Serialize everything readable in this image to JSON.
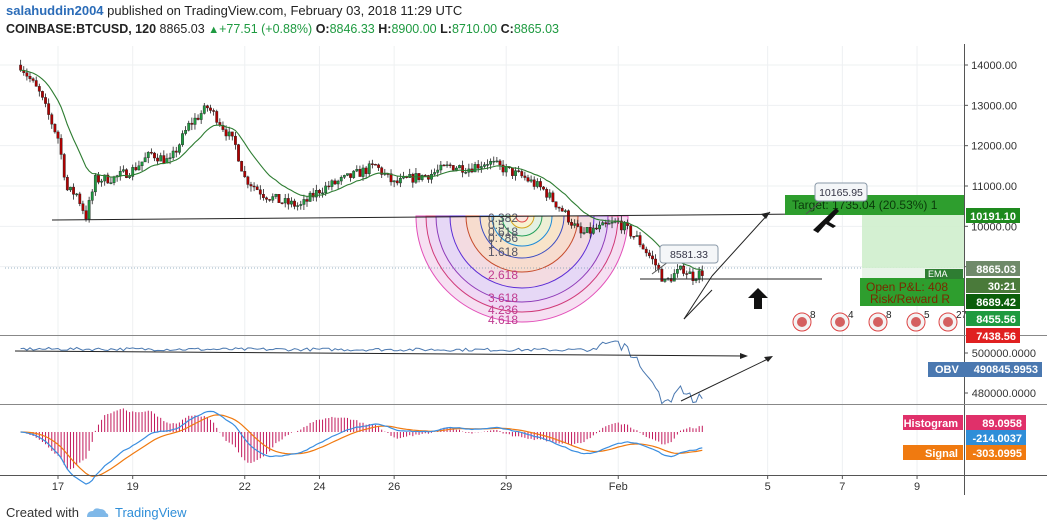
{
  "header": {
    "author": "salahuddin2004",
    "published": "published on TradingView.com, February 03, 2018 11:29 UTC",
    "symbol": "COINBASE:BTCUSD, 120",
    "last": "8865.03",
    "change": "+77.51 (+0.88%)",
    "ohlc": {
      "o_label": "O:",
      "o": "8846.33",
      "h_label": "H:",
      "h": "8900.00",
      "l_label": "L:",
      "l": "8710.00",
      "c_label": "C:",
      "c": "8865.03"
    }
  },
  "footer": {
    "created_with": "Created with",
    "brand": "TradingView"
  },
  "colors": {
    "up": "#1e9a40",
    "down": "#b00000",
    "accent": "#2b6cb8",
    "obv": "#4a78b0",
    "macd": "#3a8ee0",
    "signal": "#f07a10",
    "histogram": "#c2185b"
  },
  "chart_data": [
    {
      "type": "candlestick",
      "panel": "price",
      "ylim": [
        7380,
        14300
      ],
      "y_ticks": [
        "14000.00",
        "13000.00",
        "12000.00",
        "11000.00",
        "10000.00",
        "9000.00"
      ],
      "x_ticks": [
        "17",
        "19",
        "22",
        "24",
        "26",
        "29",
        "Feb",
        "5",
        "7",
        "9"
      ],
      "close_path": [
        {
          "d": "Jan 16 00:00",
          "c": 14000
        },
        {
          "d": "Jan 16 12:00",
          "c": 13300
        },
        {
          "d": "Jan 17 00:00",
          "c": 12200
        },
        {
          "d": "Jan 17 06:00",
          "c": 10900
        },
        {
          "d": "Jan 17 12:00",
          "c": 10800
        },
        {
          "d": "Jan 17 18:00",
          "c": 10250
        },
        {
          "d": "Jan 18 00:00",
          "c": 11150
        },
        {
          "d": "Jan 18 12:00",
          "c": 11200
        },
        {
          "d": "Jan 19 00:00",
          "c": 11400
        },
        {
          "d": "Jan 19 12:00",
          "c": 11800
        },
        {
          "d": "Jan 20 00:00",
          "c": 11600
        },
        {
          "d": "Jan 20 12:00",
          "c": 12500
        },
        {
          "d": "Jan 21 00:00",
          "c": 12950
        },
        {
          "d": "Jan 21 06:00",
          "c": 12700
        },
        {
          "d": "Jan 21 18:00",
          "c": 12000
        },
        {
          "d": "Jan 22 00:00",
          "c": 11200
        },
        {
          "d": "Jan 22 12:00",
          "c": 10800
        },
        {
          "d": "Jan 23 00:00",
          "c": 10600
        },
        {
          "d": "Jan 23 12:00",
          "c": 10500
        },
        {
          "d": "Jan 24 00:00",
          "c": 10900
        },
        {
          "d": "Jan 24 12:00",
          "c": 11100
        },
        {
          "d": "Jan 25 00:00",
          "c": 11300
        },
        {
          "d": "Jan 25 12:00",
          "c": 11500
        },
        {
          "d": "Jan 26 00:00",
          "c": 11050
        },
        {
          "d": "Jan 26 12:00",
          "c": 11200
        },
        {
          "d": "Jan 27 00:00",
          "c": 11300
        },
        {
          "d": "Jan 27 12:00",
          "c": 11500
        },
        {
          "d": "Jan 28 00:00",
          "c": 11450
        },
        {
          "d": "Jan 28 12:00",
          "c": 11600
        },
        {
          "d": "Jan 29 00:00",
          "c": 11400
        },
        {
          "d": "Jan 29 12:00",
          "c": 11200
        },
        {
          "d": "Jan 30 00:00",
          "c": 10900
        },
        {
          "d": "Jan 30 12:00",
          "c": 10400
        },
        {
          "d": "Jan 31 00:00",
          "c": 9800
        },
        {
          "d": "Jan 31 12:00",
          "c": 9950
        },
        {
          "d": "Feb 1 00:00",
          "c": 10100
        },
        {
          "d": "Feb 1 12:00",
          "c": 9700
        },
        {
          "d": "Feb 2 00:00",
          "c": 9050
        },
        {
          "d": "Feb 2 06:00",
          "c": 8600
        },
        {
          "d": "Feb 2 12:00",
          "c": 8800
        },
        {
          "d": "Feb 2 18:00",
          "c": 8950
        },
        {
          "d": "Feb 3 00:00",
          "c": 8750
        },
        {
          "d": "Feb 3 06:00",
          "c": 8865
        }
      ],
      "last_price": "8865.03",
      "price_labels": [
        {
          "text": "10191.10",
          "kind": "target"
        },
        {
          "text": "8865.03",
          "kind": "last"
        },
        {
          "text": "30:21",
          "kind": "countdown"
        },
        {
          "text": "8689.42",
          "kind": "stop"
        },
        {
          "text": "8455.56",
          "kind": "green"
        },
        {
          "text": "7438.56",
          "kind": "red"
        }
      ],
      "fib_levels": [
        "0.382",
        "0.5",
        "0.618",
        "0.786",
        "1",
        "1.618",
        "2.618",
        "3.618",
        "4.236",
        "4.618"
      ],
      "annotations": {
        "callout_1": "10165.95",
        "callout_2": "8581.33",
        "target_text": "Target: 1735.04 (20.53%) 1",
        "open_pl_text": "Open P&L: 408",
        "risk_reward_text": "Risk/Reward R",
        "ema_label": "EMA",
        "event_counts": [
          "8",
          "4",
          "8",
          "5",
          "272"
        ]
      }
    },
    {
      "type": "line",
      "panel": "obv",
      "name": "OBV",
      "value": "490845.9953",
      "y_ticks": [
        "500000.0000",
        "480000.0000"
      ],
      "ylim": [
        471000,
        508000
      ]
    },
    {
      "type": "line",
      "panel": "macd",
      "series": [
        {
          "name": "Histogram",
          "value": "89.0958"
        },
        {
          "name": "",
          "value": "-214.0037"
        },
        {
          "name": "Signal",
          "value": "-303.0995"
        }
      ]
    }
  ]
}
